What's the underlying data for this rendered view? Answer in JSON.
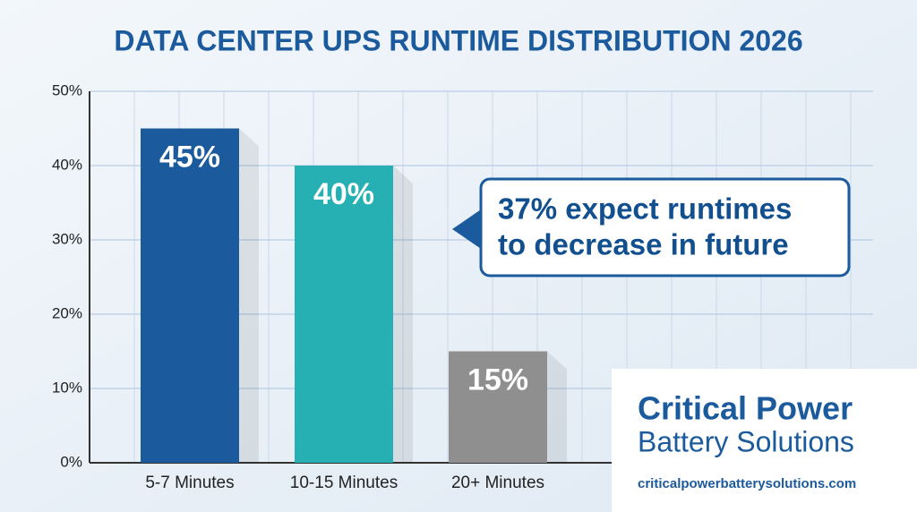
{
  "chart_data": {
    "type": "bar",
    "title": "DATA CENTER UPS RUNTIME DISTRIBUTION 2026",
    "categories": [
      "5-7 Minutes",
      "10-15 Minutes",
      "20+ Minutes"
    ],
    "values": [
      45,
      40,
      15
    ],
    "value_labels": [
      "45%",
      "40%",
      "15%"
    ],
    "colors": [
      "#1b5a9c",
      "#27b0b3",
      "#8f8f8f"
    ],
    "ylim": [
      0,
      50
    ],
    "yticks": [
      {
        "value": 0,
        "label": "0%"
      },
      {
        "value": 10,
        "label": "10%"
      },
      {
        "value": 20,
        "label": "20%"
      },
      {
        "value": 30,
        "label": "30%"
      },
      {
        "value": 40,
        "label": "40%"
      },
      {
        "value": 50,
        "label": "50%"
      }
    ],
    "grid": true,
    "annotation": [
      "37% expect runtimes",
      "to decrease in future"
    ]
  },
  "logo": {
    "name_line1": "Critical Power",
    "name_line2": "Battery Solutions",
    "url": "criticalpowerbatterysolutions.com"
  }
}
